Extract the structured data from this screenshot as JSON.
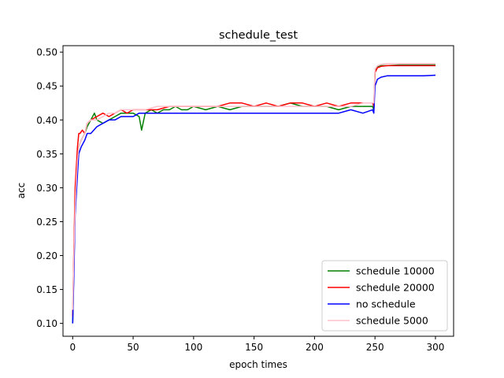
{
  "chart_data": {
    "type": "line",
    "title": "schedule_test",
    "xlabel": "epoch times",
    "ylabel": "acc",
    "xlim": [
      -8,
      315
    ],
    "ylim": [
      0.081,
      0.5095
    ],
    "xticks": [
      0,
      50,
      100,
      150,
      200,
      250,
      300
    ],
    "xtick_labels": [
      "0",
      "50",
      "100",
      "150",
      "200",
      "250",
      "300"
    ],
    "yticks": [
      0.1,
      0.15,
      0.2,
      0.25,
      0.3,
      0.35,
      0.4,
      0.45,
      0.5
    ],
    "ytick_labels": [
      "0.10",
      "0.15",
      "0.20",
      "0.25",
      "0.30",
      "0.35",
      "0.40",
      "0.45",
      "0.50"
    ],
    "grid": false,
    "legend_position": "lower-right",
    "series": [
      {
        "name": "schedule 10000",
        "color": "#008000",
        "x": [
          0,
          1,
          2,
          3,
          4,
          5,
          7,
          10,
          12,
          15,
          18,
          20,
          25,
          30,
          35,
          40,
          45,
          50,
          55,
          57,
          60,
          65,
          70,
          75,
          80,
          85,
          90,
          95,
          100,
          110,
          120,
          130,
          140,
          150,
          160,
          170,
          180,
          190,
          200,
          210,
          220,
          230,
          240,
          248,
          249,
          250,
          252,
          255,
          260,
          270,
          280,
          290,
          300
        ],
        "y": [
          0.1,
          0.18,
          0.28,
          0.31,
          0.34,
          0.36,
          0.37,
          0.38,
          0.39,
          0.4,
          0.41,
          0.4,
          0.395,
          0.4,
          0.405,
          0.41,
          0.41,
          0.41,
          0.405,
          0.385,
          0.41,
          0.415,
          0.41,
          0.415,
          0.415,
          0.42,
          0.415,
          0.415,
          0.42,
          0.415,
          0.42,
          0.415,
          0.42,
          0.42,
          0.42,
          0.42,
          0.425,
          0.42,
          0.42,
          0.42,
          0.415,
          0.42,
          0.42,
          0.42,
          0.415,
          0.47,
          0.478,
          0.48,
          0.48,
          0.481,
          0.481,
          0.481,
          0.481
        ]
      },
      {
        "name": "schedule 20000",
        "color": "#ff0000",
        "x": [
          0,
          1,
          2,
          3,
          4,
          5,
          6,
          8,
          10,
          12,
          15,
          20,
          25,
          30,
          35,
          40,
          45,
          50,
          60,
          70,
          80,
          90,
          100,
          110,
          120,
          130,
          140,
          150,
          160,
          170,
          180,
          190,
          200,
          210,
          220,
          230,
          240,
          248,
          249,
          250,
          252,
          255,
          260,
          270,
          280,
          290,
          300
        ],
        "y": [
          0.11,
          0.21,
          0.3,
          0.33,
          0.36,
          0.38,
          0.38,
          0.385,
          0.38,
          0.395,
          0.4,
          0.405,
          0.41,
          0.405,
          0.41,
          0.415,
          0.41,
          0.415,
          0.415,
          0.415,
          0.42,
          0.42,
          0.42,
          0.42,
          0.42,
          0.425,
          0.425,
          0.42,
          0.425,
          0.42,
          0.425,
          0.425,
          0.42,
          0.425,
          0.42,
          0.425,
          0.425,
          0.425,
          0.42,
          0.47,
          0.477,
          0.479,
          0.48,
          0.48,
          0.48,
          0.48,
          0.48
        ]
      },
      {
        "name": "no schedule",
        "color": "#0000ff",
        "x": [
          0,
          1,
          2,
          3,
          4,
          5,
          7,
          10,
          12,
          15,
          20,
          25,
          30,
          35,
          40,
          45,
          50,
          55,
          60,
          70,
          80,
          90,
          100,
          110,
          120,
          130,
          140,
          150,
          160,
          170,
          180,
          190,
          200,
          210,
          220,
          230,
          240,
          248,
          249,
          250,
          252,
          255,
          260,
          270,
          280,
          290,
          300
        ],
        "y": [
          0.1,
          0.17,
          0.26,
          0.29,
          0.32,
          0.35,
          0.36,
          0.37,
          0.38,
          0.38,
          0.39,
          0.395,
          0.4,
          0.4,
          0.405,
          0.405,
          0.405,
          0.41,
          0.41,
          0.41,
          0.41,
          0.41,
          0.41,
          0.41,
          0.41,
          0.41,
          0.41,
          0.41,
          0.41,
          0.41,
          0.41,
          0.41,
          0.41,
          0.41,
          0.41,
          0.415,
          0.41,
          0.415,
          0.41,
          0.45,
          0.46,
          0.463,
          0.465,
          0.465,
          0.465,
          0.465,
          0.466
        ]
      },
      {
        "name": "schedule 5000",
        "color": "#ffc0cb",
        "x": [
          0,
          1,
          2,
          3,
          4,
          5,
          7,
          10,
          12,
          15,
          20,
          25,
          30,
          35,
          40,
          45,
          50,
          60,
          70,
          80,
          90,
          100,
          110,
          120,
          130,
          140,
          150,
          160,
          170,
          180,
          190,
          200,
          210,
          220,
          230,
          240,
          248,
          249,
          250,
          252,
          255,
          260,
          270,
          280,
          290,
          300
        ],
        "y": [
          0.12,
          0.2,
          0.27,
          0.31,
          0.34,
          0.36,
          0.37,
          0.38,
          0.395,
          0.4,
          0.4,
          0.405,
          0.41,
          0.41,
          0.415,
          0.415,
          0.415,
          0.415,
          0.42,
          0.42,
          0.42,
          0.42,
          0.42,
          0.42,
          0.42,
          0.42,
          0.42,
          0.42,
          0.42,
          0.42,
          0.42,
          0.42,
          0.42,
          0.42,
          0.42,
          0.425,
          0.425,
          0.425,
          0.475,
          0.48,
          0.482,
          0.483,
          0.483,
          0.483,
          0.483,
          0.483
        ]
      }
    ]
  }
}
